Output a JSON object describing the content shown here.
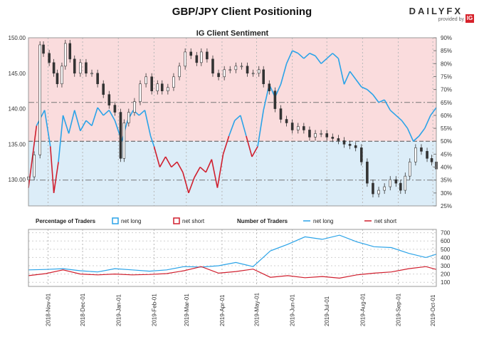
{
  "header": {
    "title": "GBP/JPY Client Positioning",
    "brand": "DAILYFX",
    "brand_sub": "provided by",
    "brand_logo": "IG"
  },
  "colors": {
    "net_long": "#2aa3e8",
    "net_short": "#d01f2e",
    "long_zone": "#dcedf8",
    "short_zone": "#fadcdd",
    "price": "#333333"
  },
  "chart_data": [
    {
      "type": "line",
      "title": "IG Client Sentiment",
      "left_axis": {
        "ticks": [
          "150.00",
          "145.00",
          "140.00",
          "135.00",
          "130.00"
        ],
        "ylim": [
          126.3,
          150.0
        ]
      },
      "right_axis": {
        "ticks": [
          "90%",
          "85%",
          "80%",
          "75%",
          "70%",
          "65%",
          "60%",
          "55%",
          "50%",
          "45%",
          "40%",
          "35%",
          "30%",
          "25%"
        ],
        "ylim": [
          25,
          90
        ]
      },
      "x_ticks": [
        "2018-Nov-01",
        "2018-Dec-01",
        "2019-Jan-01",
        "2019-Feb-01",
        "2019-Mar-01",
        "2019-Apr-01",
        "2019-May-01",
        "2019-Jun-01",
        "2019-Jul-01",
        "2019-Aug-01",
        "2019-Sep-01",
        "2019-Oct-01"
      ],
      "x_range": [
        "2018-10-15",
        "2019-10-04"
      ],
      "series": [
        {
          "name": "GBP/JPY",
          "kind": "candlestick-close",
          "points": [
            [
              "2018-10-15",
              130.4
            ],
            [
              "2018-10-20",
              133.5
            ],
            [
              "2018-10-25",
              149.0
            ],
            [
              "2018-10-28",
              147.8
            ],
            [
              "2018-11-02",
              146.5
            ],
            [
              "2018-11-06",
              145.0
            ],
            [
              "2018-11-09",
              143.5
            ],
            [
              "2018-11-13",
              146.0
            ],
            [
              "2018-11-16",
              149.2
            ],
            [
              "2018-11-20",
              147.0
            ],
            [
              "2018-11-24",
              145.0
            ],
            [
              "2018-11-29",
              146.5
            ],
            [
              "2018-12-04",
              145.0
            ],
            [
              "2018-12-09",
              145.0
            ],
            [
              "2018-12-14",
              143.5
            ],
            [
              "2018-12-19",
              142.0
            ],
            [
              "2018-12-24",
              140.5
            ],
            [
              "2018-12-29",
              139.5
            ],
            [
              "2019-01-03",
              133.0
            ],
            [
              "2019-01-06",
              138.0
            ],
            [
              "2019-01-10",
              139.5
            ],
            [
              "2019-01-15",
              141.0
            ],
            [
              "2019-01-20",
              143.5
            ],
            [
              "2019-01-25",
              144.5
            ],
            [
              "2019-01-30",
              142.5
            ],
            [
              "2019-02-04",
              143.5
            ],
            [
              "2019-02-08",
              142.5
            ],
            [
              "2019-02-13",
              143.0
            ],
            [
              "2019-02-18",
              144.5
            ],
            [
              "2019-02-23",
              146.0
            ],
            [
              "2019-02-28",
              148.0
            ],
            [
              "2019-03-05",
              147.5
            ],
            [
              "2019-03-10",
              146.5
            ],
            [
              "2019-03-14",
              148.0
            ],
            [
              "2019-03-19",
              147.0
            ],
            [
              "2019-03-24",
              145.0
            ],
            [
              "2019-03-29",
              144.5
            ],
            [
              "2019-04-03",
              145.5
            ],
            [
              "2019-04-08",
              145.5
            ],
            [
              "2019-04-13",
              146.0
            ],
            [
              "2019-04-18",
              146.0
            ],
            [
              "2019-04-23",
              145.0
            ],
            [
              "2019-04-28",
              145.0
            ],
            [
              "2019-05-03",
              145.5
            ],
            [
              "2019-05-07",
              143.5
            ],
            [
              "2019-05-12",
              142.5
            ],
            [
              "2019-05-17",
              140.0
            ],
            [
              "2019-05-22",
              138.5
            ],
            [
              "2019-05-27",
              138.0
            ],
            [
              "2019-06-01",
              137.0
            ],
            [
              "2019-06-06",
              137.5
            ],
            [
              "2019-06-11",
              137.0
            ],
            [
              "2019-06-16",
              136.0
            ],
            [
              "2019-06-21",
              136.5
            ],
            [
              "2019-06-26",
              136.5
            ],
            [
              "2019-07-01",
              136.0
            ],
            [
              "2019-07-06",
              135.8
            ],
            [
              "2019-07-11",
              135.5
            ],
            [
              "2019-07-16",
              135.0
            ],
            [
              "2019-07-21",
              134.8
            ],
            [
              "2019-07-26",
              134.5
            ],
            [
              "2019-07-31",
              132.5
            ],
            [
              "2019-08-05",
              129.5
            ],
            [
              "2019-08-10",
              128.0
            ],
            [
              "2019-08-15",
              128.5
            ],
            [
              "2019-08-20",
              129.0
            ],
            [
              "2019-08-25",
              130.0
            ],
            [
              "2019-08-30",
              129.5
            ],
            [
              "2019-09-03",
              128.5
            ],
            [
              "2019-09-07",
              130.5
            ],
            [
              "2019-09-11",
              132.5
            ],
            [
              "2019-09-16",
              134.5
            ],
            [
              "2019-09-21",
              134.0
            ],
            [
              "2019-09-26",
              133.0
            ],
            [
              "2019-09-30",
              132.5
            ],
            [
              "2019-10-04",
              131.5
            ]
          ]
        },
        {
          "name": "Percentage of Traders net long",
          "axis": "right",
          "points": [
            [
              "2018-10-15",
              32
            ],
            [
              "2018-10-22",
              56
            ],
            [
              "2018-10-29",
              62
            ],
            [
              "2018-11-03",
              48
            ],
            [
              "2018-11-06",
              30
            ],
            [
              "2018-11-10",
              42
            ],
            [
              "2018-11-14",
              60
            ],
            [
              "2018-11-19",
              53
            ],
            [
              "2018-11-24",
              62
            ],
            [
              "2018-11-29",
              54
            ],
            [
              "2018-12-04",
              58
            ],
            [
              "2018-12-09",
              56
            ],
            [
              "2018-12-14",
              63
            ],
            [
              "2018-12-19",
              60
            ],
            [
              "2018-12-24",
              62
            ],
            [
              "2018-12-29",
              58
            ],
            [
              "2019-01-04",
              50
            ],
            [
              "2019-01-09",
              58
            ],
            [
              "2019-01-14",
              62
            ],
            [
              "2019-01-19",
              60
            ],
            [
              "2019-01-24",
              62
            ],
            [
              "2019-01-29",
              52
            ],
            [
              "2019-02-01",
              48
            ],
            [
              "2019-02-06",
              40
            ],
            [
              "2019-02-11",
              44
            ],
            [
              "2019-02-16",
              40
            ],
            [
              "2019-02-21",
              42
            ],
            [
              "2019-02-26",
              38
            ],
            [
              "2019-03-03",
              30
            ],
            [
              "2019-03-08",
              36
            ],
            [
              "2019-03-13",
              40
            ],
            [
              "2019-03-18",
              38
            ],
            [
              "2019-03-23",
              43
            ],
            [
              "2019-03-28",
              32
            ],
            [
              "2019-04-02",
              45
            ],
            [
              "2019-04-07",
              52
            ],
            [
              "2019-04-12",
              58
            ],
            [
              "2019-04-17",
              60
            ],
            [
              "2019-04-22",
              52
            ],
            [
              "2019-04-27",
              44
            ],
            [
              "2019-05-02",
              48
            ],
            [
              "2019-05-07",
              62
            ],
            [
              "2019-05-12",
              72
            ],
            [
              "2019-05-17",
              67
            ],
            [
              "2019-05-22",
              72
            ],
            [
              "2019-05-27",
              80
            ],
            [
              "2019-06-01",
              85
            ],
            [
              "2019-06-06",
              84
            ],
            [
              "2019-06-11",
              82
            ],
            [
              "2019-06-16",
              84
            ],
            [
              "2019-06-21",
              83
            ],
            [
              "2019-06-26",
              80
            ],
            [
              "2019-07-01",
              82
            ],
            [
              "2019-07-06",
              84
            ],
            [
              "2019-07-11",
              82
            ],
            [
              "2019-07-16",
              72
            ],
            [
              "2019-07-21",
              77
            ],
            [
              "2019-07-26",
              74
            ],
            [
              "2019-07-31",
              71
            ],
            [
              "2019-08-05",
              70
            ],
            [
              "2019-08-10",
              68
            ],
            [
              "2019-08-15",
              65
            ],
            [
              "2019-08-20",
              66
            ],
            [
              "2019-08-25",
              62
            ],
            [
              "2019-08-30",
              60
            ],
            [
              "2019-09-04",
              58
            ],
            [
              "2019-09-09",
              55
            ],
            [
              "2019-09-14",
              50
            ],
            [
              "2019-09-19",
              52
            ],
            [
              "2019-09-24",
              55
            ],
            [
              "2019-09-29",
              60
            ],
            [
              "2019-10-04",
              63
            ]
          ]
        }
      ]
    },
    {
      "type": "line",
      "legend_left": {
        "title": "Percentage of Traders",
        "items": [
          "net long",
          "net short"
        ]
      },
      "legend_right": {
        "title": "Number of Traders",
        "items": [
          "net long",
          "net short"
        ]
      },
      "right_axis": {
        "ticks": [
          "700",
          "600",
          "500",
          "400",
          "300",
          "200",
          "100"
        ],
        "ylim": [
          50,
          740
        ]
      },
      "x_ticks": [
        "2018-Nov-01",
        "2018-Dec-01",
        "2019-Jan-01",
        "2019-Feb-01",
        "2019-Mar-01",
        "2019-Apr-01",
        "2019-May-01",
        "2019-Jun-01",
        "2019-Jul-01",
        "2019-Aug-01",
        "2019-Sep-01",
        "2019-Oct-01"
      ],
      "series": [
        {
          "name": "net long",
          "points": [
            [
              "2018-10-15",
              250
            ],
            [
              "2018-10-30",
              255
            ],
            [
              "2018-11-14",
              265
            ],
            [
              "2018-11-29",
              240
            ],
            [
              "2018-12-14",
              225
            ],
            [
              "2018-12-29",
              265
            ],
            [
              "2019-01-13",
              250
            ],
            [
              "2019-01-28",
              235
            ],
            [
              "2019-02-12",
              250
            ],
            [
              "2019-02-27",
              290
            ],
            [
              "2019-03-14",
              285
            ],
            [
              "2019-03-29",
              300
            ],
            [
              "2019-04-13",
              340
            ],
            [
              "2019-04-28",
              290
            ],
            [
              "2019-05-13",
              480
            ],
            [
              "2019-05-28",
              560
            ],
            [
              "2019-06-12",
              650
            ],
            [
              "2019-06-27",
              620
            ],
            [
              "2019-07-12",
              670
            ],
            [
              "2019-07-27",
              590
            ],
            [
              "2019-08-11",
              530
            ],
            [
              "2019-08-26",
              520
            ],
            [
              "2019-09-10",
              450
            ],
            [
              "2019-09-25",
              400
            ],
            [
              "2019-10-04",
              440
            ]
          ]
        },
        {
          "name": "net short",
          "points": [
            [
              "2018-10-15",
              180
            ],
            [
              "2018-10-30",
              205
            ],
            [
              "2018-11-14",
              250
            ],
            [
              "2018-11-29",
              200
            ],
            [
              "2018-12-14",
              190
            ],
            [
              "2018-12-29",
              200
            ],
            [
              "2019-01-13",
              190
            ],
            [
              "2019-01-28",
              195
            ],
            [
              "2019-02-12",
              205
            ],
            [
              "2019-02-27",
              240
            ],
            [
              "2019-03-14",
              290
            ],
            [
              "2019-03-29",
              210
            ],
            [
              "2019-04-13",
              230
            ],
            [
              "2019-04-28",
              260
            ],
            [
              "2019-05-13",
              160
            ],
            [
              "2019-05-28",
              180
            ],
            [
              "2019-06-12",
              155
            ],
            [
              "2019-06-27",
              170
            ],
            [
              "2019-07-12",
              150
            ],
            [
              "2019-07-27",
              190
            ],
            [
              "2019-08-11",
              210
            ],
            [
              "2019-08-26",
              225
            ],
            [
              "2019-09-10",
              265
            ],
            [
              "2019-09-25",
              290
            ],
            [
              "2019-10-04",
              255
            ]
          ]
        }
      ]
    }
  ]
}
